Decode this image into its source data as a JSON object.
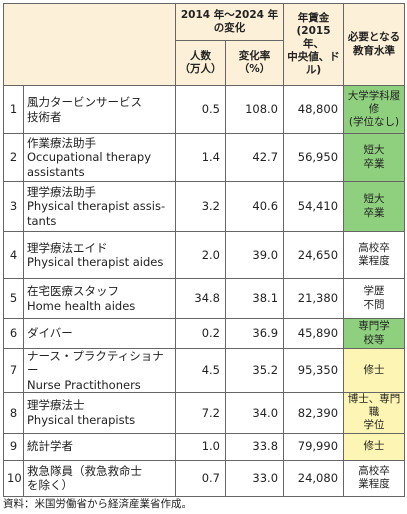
{
  "table": {
    "header": {
      "change": "2014 年～2024 年\nの変化",
      "people": "人数\n（万人）",
      "rate": "変化率\n（%）",
      "wage": "年賃金\n(2015 年、\n中央値、ドル)",
      "education": "必要となる\n教育水準"
    },
    "rows": [
      {
        "rank": "1",
        "job": "風力タービンサービス\n技術者",
        "people": "0.5",
        "rate": "108.0",
        "wage": "48,800",
        "education": "大学学科履修\n(学位なし)",
        "color": "#8fd07f"
      },
      {
        "rank": "2",
        "job": "作業療法助手\nOccupational therapy\nassistants",
        "people": "1.4",
        "rate": "42.7",
        "wage": "56,950",
        "education": "短大\n卒業",
        "color": "#8fd07f"
      },
      {
        "rank": "3",
        "job": "理学療法助手\nPhysical therapist assis-\ntants",
        "people": "3.2",
        "rate": "40.6",
        "wage": "54,410",
        "education": "短大\n卒業",
        "color": "#8fd07f"
      },
      {
        "rank": "4",
        "job": "理学療法エイド\nPhysical therapist aides",
        "people": "2.0",
        "rate": "39.0",
        "wage": "24,650",
        "education": "高校卒\n業程度",
        "color": "#ffffff"
      },
      {
        "rank": "5",
        "job": "在宅医療スタッフ\nHome health aides",
        "people": "34.8",
        "rate": "38.1",
        "wage": "21,380",
        "education": "学歴\n不問",
        "color": "#ffffff"
      },
      {
        "rank": "6",
        "job": "ダイバー",
        "people": "0.2",
        "rate": "36.9",
        "wage": "45,890",
        "education": "専門学\n校等",
        "color": "#8fd07f"
      },
      {
        "rank": "7",
        "job": "ナース・プラクティショナー\nNurse Practithoners",
        "people": "4.5",
        "rate": "35.2",
        "wage": "95,350",
        "education": "修士",
        "color": "#fdf5b3"
      },
      {
        "rank": "8",
        "job": "理学療法士\nPhysical therapists",
        "people": "7.2",
        "rate": "34.0",
        "wage": "82,390",
        "education": "博士、専門職\n学位",
        "color": "#fdf5b3"
      },
      {
        "rank": "9",
        "job": "統計学者",
        "people": "1.0",
        "rate": "33.8",
        "wage": "79,990",
        "education": "修士",
        "color": "#fdf5b3"
      },
      {
        "rank": "10",
        "job": "救急隊員（救急救命士\nを除く）",
        "people": "0.7",
        "rate": "33.0",
        "wage": "24,080",
        "education": "高校卒\n業程度",
        "color": "#ffffff"
      }
    ],
    "row_heights": null
  },
  "footnote": "資料：米国労働省から経済産業省作成。"
}
